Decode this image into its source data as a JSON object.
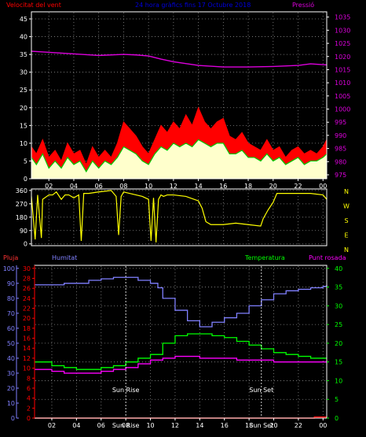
{
  "header": {
    "left_title": "Velocitat del vent",
    "center_title": "24 hora gràfics fins 17 Octubre 2018",
    "right_title": "Pressió"
  },
  "colors": {
    "background": "#000000",
    "grid": "#8a8a8a",
    "axis_text": "#ffffff",
    "wind_gust": "#ff0000",
    "wind_avg": "#00cc00",
    "wind_fill": "#ffffcc",
    "pressure": "#dd00dd",
    "direction": "#ffff00",
    "rain": "#ff0000",
    "humidity": "#8080ff",
    "temperature": "#00ff00",
    "dew_point": "#ff00ff",
    "sun_marker": "#ffffff",
    "panel_border": "#ffffff"
  },
  "x_axis": {
    "tick_labels": [
      "02",
      "04",
      "06",
      "08",
      "10",
      "12",
      "14",
      "16",
      "18",
      "20",
      "22",
      "00"
    ],
    "tick_hours": [
      2,
      4,
      6,
      8,
      10,
      12,
      14,
      16,
      18,
      20,
      22,
      24
    ],
    "range_hours": [
      0.6,
      24.3
    ]
  },
  "chart_data": [
    {
      "type": "line",
      "id": "wind",
      "title": "Velocitat del vent",
      "y_left": {
        "label": "Velocitat del vent",
        "ticks": [
          0,
          5,
          10,
          15,
          20,
          25,
          30,
          35,
          40,
          45
        ],
        "range": [
          0,
          47
        ]
      },
      "y_right": {
        "label": "Pressió",
        "ticks": [
          975,
          980,
          985,
          990,
          995,
          1000,
          1005,
          1010,
          1015,
          1020,
          1025,
          1030,
          1035
        ],
        "range": [
          973.5,
          1037
        ]
      },
      "series": [
        {
          "key": "gust",
          "hours": [
            0.6,
            1,
            1.5,
            2,
            2.5,
            3,
            3.5,
            4,
            4.5,
            5,
            5.5,
            6,
            6.5,
            7,
            7.5,
            8,
            8.5,
            9,
            9.5,
            10,
            10.5,
            11,
            11.5,
            12,
            12.5,
            13,
            13.5,
            14,
            14.5,
            15,
            15.5,
            16,
            16.5,
            17,
            17.5,
            18,
            18.5,
            19,
            19.5,
            20,
            20.5,
            21,
            21.5,
            22,
            22.5,
            23,
            23.5,
            24,
            24.3
          ],
          "values": [
            9,
            7,
            11,
            6,
            8,
            5,
            10,
            7,
            8,
            4,
            9,
            6,
            8,
            6,
            10,
            16,
            14,
            12,
            9,
            7,
            11,
            15,
            13,
            16,
            14,
            18,
            15,
            20,
            16,
            14,
            16,
            17,
            12,
            11,
            13,
            10,
            9,
            8,
            11,
            8,
            9,
            6,
            8,
            9,
            7,
            8,
            7,
            9,
            11
          ]
        },
        {
          "key": "avg",
          "hours": [
            0.6,
            1,
            1.5,
            2,
            2.5,
            3,
            3.5,
            4,
            4.5,
            5,
            5.5,
            6,
            6.5,
            7,
            7.5,
            8,
            8.5,
            9,
            9.5,
            10,
            10.5,
            11,
            11.5,
            12,
            12.5,
            13,
            13.5,
            14,
            14.5,
            15,
            15.5,
            16,
            16.5,
            17,
            17.5,
            18,
            18.5,
            19,
            19.5,
            20,
            20.5,
            21,
            21.5,
            22,
            22.5,
            23,
            23.5,
            24,
            24.3
          ],
          "values": [
            6,
            4,
            7,
            3,
            5,
            3,
            6,
            4,
            5,
            2,
            5,
            3,
            5,
            4,
            6,
            9,
            8,
            7,
            5,
            4,
            7,
            9,
            8,
            10,
            9,
            10,
            9,
            11,
            10,
            9,
            10,
            10,
            7,
            7,
            8,
            6,
            6,
            5,
            7,
            5,
            6,
            4,
            5,
            6,
            4,
            5,
            5,
            6,
            7
          ]
        },
        {
          "key": "pressure",
          "hours": [
            0.6,
            2,
            4,
            6,
            8,
            9,
            10,
            11,
            12,
            14,
            16,
            18,
            20,
            22,
            23,
            24.3
          ],
          "values": [
            1022,
            1021.6,
            1021,
            1020.4,
            1020.8,
            1020.6,
            1020.2,
            1019,
            1018,
            1016.6,
            1016,
            1016,
            1016.2,
            1016.6,
            1017.2,
            1016.8
          ]
        }
      ]
    },
    {
      "type": "line",
      "id": "direction",
      "title": "",
      "y_left": {
        "ticks": [
          0,
          90,
          180,
          270,
          360
        ],
        "range": [
          -12,
          370
        ]
      },
      "y_right_labels": [
        "N",
        "W",
        "S",
        "E",
        "N"
      ],
      "series": [
        {
          "key": "direction",
          "hours": [
            0.6,
            0.9,
            1.1,
            1.4,
            1.5,
            2,
            2.3,
            2.6,
            3,
            3.3,
            3.6,
            4,
            4.4,
            4.6,
            4.8,
            5.2,
            6,
            7,
            7.4,
            7.6,
            7.8,
            8,
            9,
            9.5,
            10,
            10.2,
            10.4,
            10.6,
            10.8,
            11,
            11.2,
            11.5,
            12,
            13,
            14,
            14.3,
            14.6,
            15,
            16,
            17,
            18,
            19,
            19.2,
            19.6,
            20,
            20.3,
            21,
            22,
            23,
            24,
            24.3
          ],
          "values": [
            320,
            30,
            330,
            40,
            300,
            330,
            330,
            350,
            300,
            330,
            330,
            310,
            330,
            20,
            340,
            340,
            350,
            360,
            320,
            60,
            320,
            350,
            330,
            320,
            300,
            20,
            310,
            10,
            300,
            330,
            320,
            330,
            330,
            320,
            290,
            240,
            150,
            130,
            130,
            140,
            130,
            120,
            170,
            230,
            280,
            340,
            340,
            340,
            340,
            330,
            300
          ]
        }
      ]
    },
    {
      "type": "line",
      "id": "climate",
      "title": "",
      "labels": {
        "rain": "Pluja",
        "humidity": "Humitat",
        "temperature": "Temperatura",
        "dew_point": "Punt rosada"
      },
      "y_humidity": {
        "ticks": [
          0,
          10,
          20,
          30,
          40,
          50,
          60,
          70,
          80,
          90,
          100
        ],
        "range": [
          0,
          102
        ]
      },
      "y_rain": {
        "ticks": [
          0,
          2,
          4,
          6,
          8,
          10,
          12,
          14,
          16,
          18,
          20,
          22,
          24,
          26,
          28,
          30
        ],
        "range": [
          0,
          30.6
        ]
      },
      "y_temp": {
        "ticks": [
          0,
          5,
          10,
          15,
          20,
          25,
          30,
          35,
          40
        ],
        "range": [
          0,
          40.8
        ]
      },
      "series": [
        {
          "key": "humidity",
          "hours": [
            0.6,
            2,
            3,
            5,
            6,
            7,
            8,
            9,
            10,
            10.6,
            11,
            12,
            13,
            14,
            15,
            16,
            17,
            18,
            19,
            20,
            21,
            22,
            23,
            24,
            24.3
          ],
          "values": [
            89,
            89,
            90,
            92,
            93,
            94,
            94,
            92,
            90,
            87,
            80,
            72,
            65,
            61,
            64,
            67,
            70,
            75,
            79,
            83,
            85,
            86,
            87,
            88,
            89
          ]
        },
        {
          "key": "temperature",
          "hours": [
            0.6,
            2,
            3,
            4,
            5,
            6,
            7,
            8,
            9,
            10,
            11,
            12,
            13,
            14,
            15,
            16,
            17,
            18,
            19,
            20,
            21,
            22,
            23,
            24,
            24.3
          ],
          "values": [
            15,
            14,
            13.5,
            13,
            13,
            13.5,
            14,
            15,
            16,
            17,
            20,
            22,
            22.5,
            22.5,
            22,
            21.5,
            20.5,
            19.5,
            18.5,
            17.5,
            17,
            16.5,
            16,
            16,
            16
          ]
        },
        {
          "key": "dew_point",
          "hours": [
            0.6,
            2,
            3,
            4,
            5,
            6,
            7,
            8,
            9,
            10,
            11,
            12,
            13,
            14,
            15,
            16,
            17,
            18,
            19,
            20,
            21,
            22,
            23,
            24,
            24.3
          ],
          "values": [
            13,
            12.5,
            12,
            12,
            12,
            12.5,
            13,
            13.5,
            14.5,
            15.5,
            16,
            16.5,
            16.5,
            16,
            16,
            16,
            15.5,
            15.5,
            15.5,
            15,
            15,
            15,
            15,
            15,
            15.3
          ]
        },
        {
          "key": "rain",
          "hours": [
            0.6,
            23.2,
            23.3,
            24.3
          ],
          "values": [
            0,
            0,
            0.2,
            0.2
          ]
        }
      ],
      "markers": [
        {
          "label": "Sun Rise",
          "hour": 8.0
        },
        {
          "label": "Sun Set",
          "hour": 19.0
        },
        {
          "label": "Sun Rise",
          "hour": 8.0,
          "position": "axis"
        },
        {
          "label": "Sun Set",
          "hour": 19.0,
          "position": "axis"
        }
      ]
    }
  ]
}
